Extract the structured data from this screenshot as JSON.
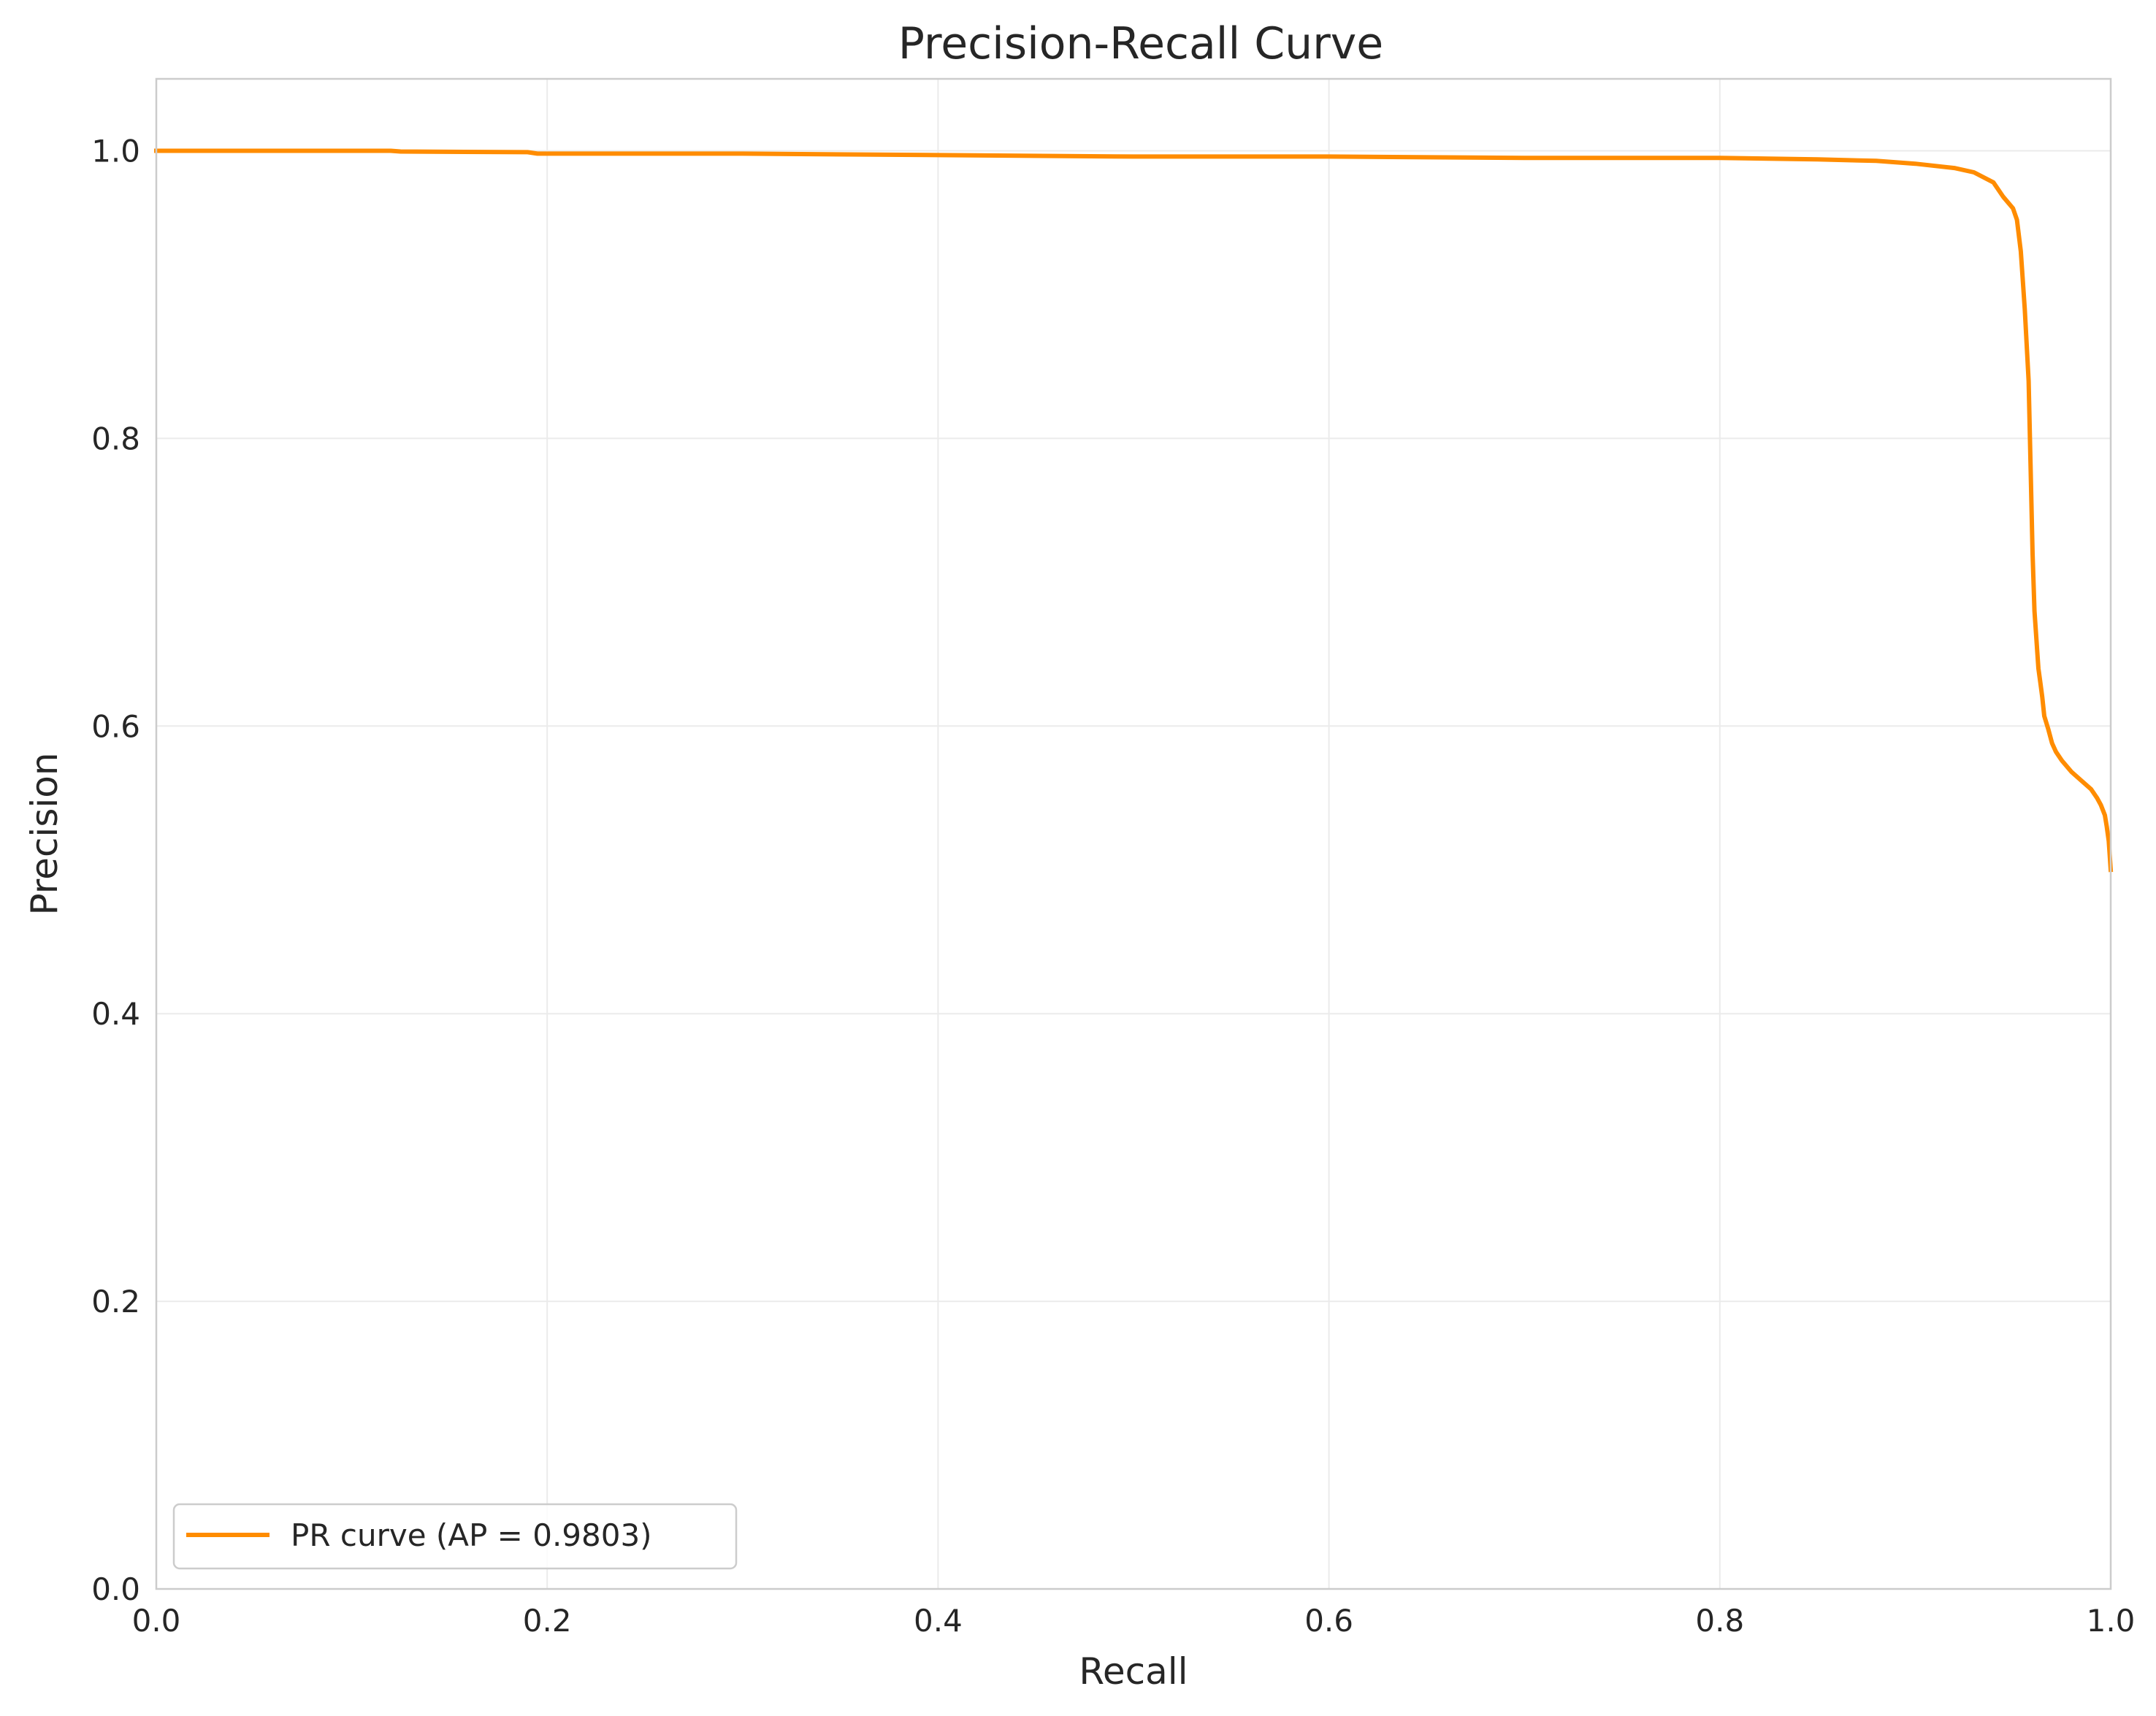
{
  "chart_data": {
    "type": "line",
    "title": "Precision-Recall Curve",
    "xlabel": "Recall",
    "ylabel": "Precision",
    "xlim": [
      0.0,
      1.0
    ],
    "ylim": [
      0.0,
      1.05
    ],
    "x_ticks": [
      "0.0",
      "0.2",
      "0.4",
      "0.6",
      "0.8",
      "1.0"
    ],
    "y_ticks": [
      "0.0",
      "0.2",
      "0.4",
      "0.6",
      "0.8",
      "1.0"
    ],
    "grid": true,
    "legend_position": "lower-left",
    "series": [
      {
        "name": "PR curve (AP = 0.9803)",
        "color": "#ff8c00",
        "x": [
          0.0,
          0.12,
          0.125,
          0.19,
          0.195,
          0.3,
          0.4,
          0.5,
          0.6,
          0.7,
          0.8,
          0.85,
          0.88,
          0.9,
          0.92,
          0.93,
          0.94,
          0.945,
          0.95,
          0.952,
          0.954,
          0.955,
          0.956,
          0.958,
          0.959,
          0.96,
          0.961,
          0.962,
          0.963,
          0.964,
          0.965,
          0.966,
          0.968,
          0.97,
          0.972,
          0.975,
          0.98,
          0.985,
          0.99,
          0.993,
          0.995,
          0.997,
          0.998,
          0.999,
          1.0
        ],
        "y": [
          1.0,
          1.0,
          0.9995,
          0.999,
          0.998,
          0.998,
          0.997,
          0.996,
          0.996,
          0.995,
          0.995,
          0.994,
          0.993,
          0.991,
          0.988,
          0.985,
          0.978,
          0.968,
          0.96,
          0.952,
          0.93,
          0.91,
          0.89,
          0.84,
          0.78,
          0.72,
          0.68,
          0.66,
          0.64,
          0.63,
          0.62,
          0.607,
          0.598,
          0.588,
          0.582,
          0.576,
          0.568,
          0.562,
          0.556,
          0.55,
          0.545,
          0.538,
          0.53,
          0.52,
          0.5
        ]
      }
    ]
  }
}
